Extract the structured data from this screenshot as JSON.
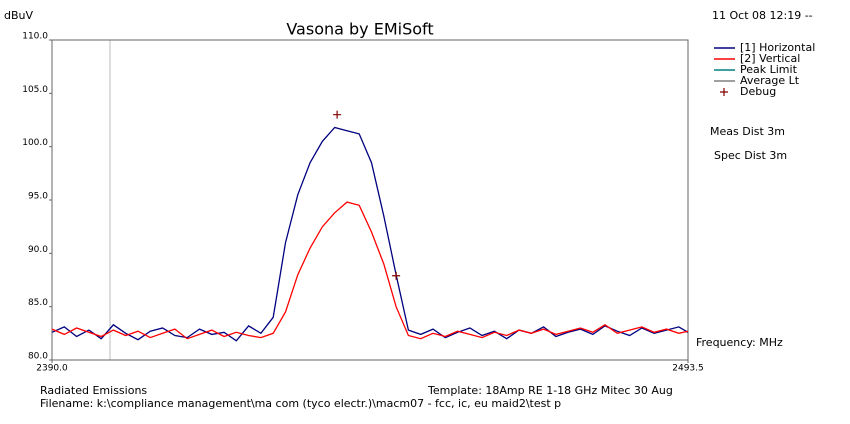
{
  "chart_data": {
    "type": "line",
    "title": "Vasona by EMiSoft",
    "ylabel": "dBuV",
    "xlabel": "Frequency: MHz",
    "timestamp": "11 Oct 08 12:19 --",
    "notes": [
      "Meas Dist 3m",
      "Spec Dist 3m"
    ],
    "footer": [
      "Radiated Emissions",
      "Template: 18Amp RE 1-18 GHz Mitec 30 Aug",
      "Filename: k:\\compliance management\\ma com (tyco electr.)\\macm07 - fcc, ic, eu maid2\\test p"
    ],
    "x": [
      2390,
      2392,
      2394,
      2396,
      2398,
      2400,
      2402,
      2404,
      2406,
      2408,
      2410,
      2412,
      2414,
      2416,
      2418,
      2420,
      2422,
      2424,
      2426,
      2428,
      2430,
      2432,
      2434,
      2436,
      2438,
      2440,
      2442,
      2444,
      2446,
      2448,
      2450,
      2452,
      2454,
      2456,
      2458,
      2460,
      2462,
      2464,
      2466,
      2468,
      2470,
      2472,
      2474,
      2476,
      2478,
      2480,
      2482,
      2484,
      2486,
      2488,
      2490,
      2492,
      2493.5
    ],
    "series": [
      {
        "name": "[1] Horizontal",
        "color": "#000080",
        "values": [
          82.6,
          83.1,
          82.2,
          82.8,
          82.0,
          83.3,
          82.5,
          81.9,
          82.7,
          83.0,
          82.3,
          82.1,
          82.9,
          82.4,
          82.6,
          81.8,
          83.2,
          82.5,
          84.0,
          91.0,
          95.5,
          98.5,
          100.5,
          101.8,
          101.5,
          101.2,
          98.5,
          93.5,
          88.0,
          82.8,
          82.4,
          82.9,
          82.1,
          82.6,
          83.0,
          82.3,
          82.7,
          82.0,
          82.8,
          82.5,
          83.1,
          82.2,
          82.6,
          82.9,
          82.4,
          83.2,
          82.7,
          82.3,
          83.0,
          82.5,
          82.8,
          83.1,
          82.6
        ]
      },
      {
        "name": "[2] Vertical",
        "color": "#ff0000",
        "values": [
          82.9,
          82.4,
          83.0,
          82.6,
          82.2,
          82.8,
          82.3,
          82.7,
          82.1,
          82.5,
          82.9,
          82.0,
          82.4,
          82.8,
          82.2,
          82.6,
          82.3,
          82.1,
          82.5,
          84.5,
          88.0,
          90.5,
          92.5,
          93.8,
          94.8,
          94.5,
          92.0,
          89.0,
          85.0,
          82.3,
          82.0,
          82.5,
          82.2,
          82.7,
          82.4,
          82.1,
          82.6,
          82.3,
          82.8,
          82.5,
          82.9,
          82.4,
          82.7,
          83.0,
          82.6,
          83.3,
          82.5,
          82.8,
          83.1,
          82.6,
          82.9,
          82.5,
          82.7
        ]
      }
    ],
    "legend_only": [
      {
        "name": "Peak Limit",
        "color": "#008080"
      },
      {
        "name": "Average Lt",
        "color": "#808080"
      }
    ],
    "markers": {
      "name": "Debug",
      "color": "#800000",
      "x": [
        2436.4,
        2446.0
      ],
      "values": [
        103.0,
        87.9
      ]
    },
    "xlim": [
      2390,
      2493.5
    ],
    "xticks": [
      {
        "value": 2390,
        "label": "2390.0"
      },
      {
        "value": 2493.5,
        "label": "2493.5"
      }
    ],
    "ylim": [
      80,
      110
    ],
    "yticks": [
      {
        "value": 80,
        "label": "80.0"
      },
      {
        "value": 85,
        "label": "85.0"
      },
      {
        "value": 90,
        "label": "90.0"
      },
      {
        "value": 95,
        "label": "95.0"
      },
      {
        "value": 100,
        "label": "100.0"
      },
      {
        "value": 105,
        "label": "105.0"
      },
      {
        "value": 110,
        "label": "110.0"
      }
    ],
    "grid": false
  }
}
